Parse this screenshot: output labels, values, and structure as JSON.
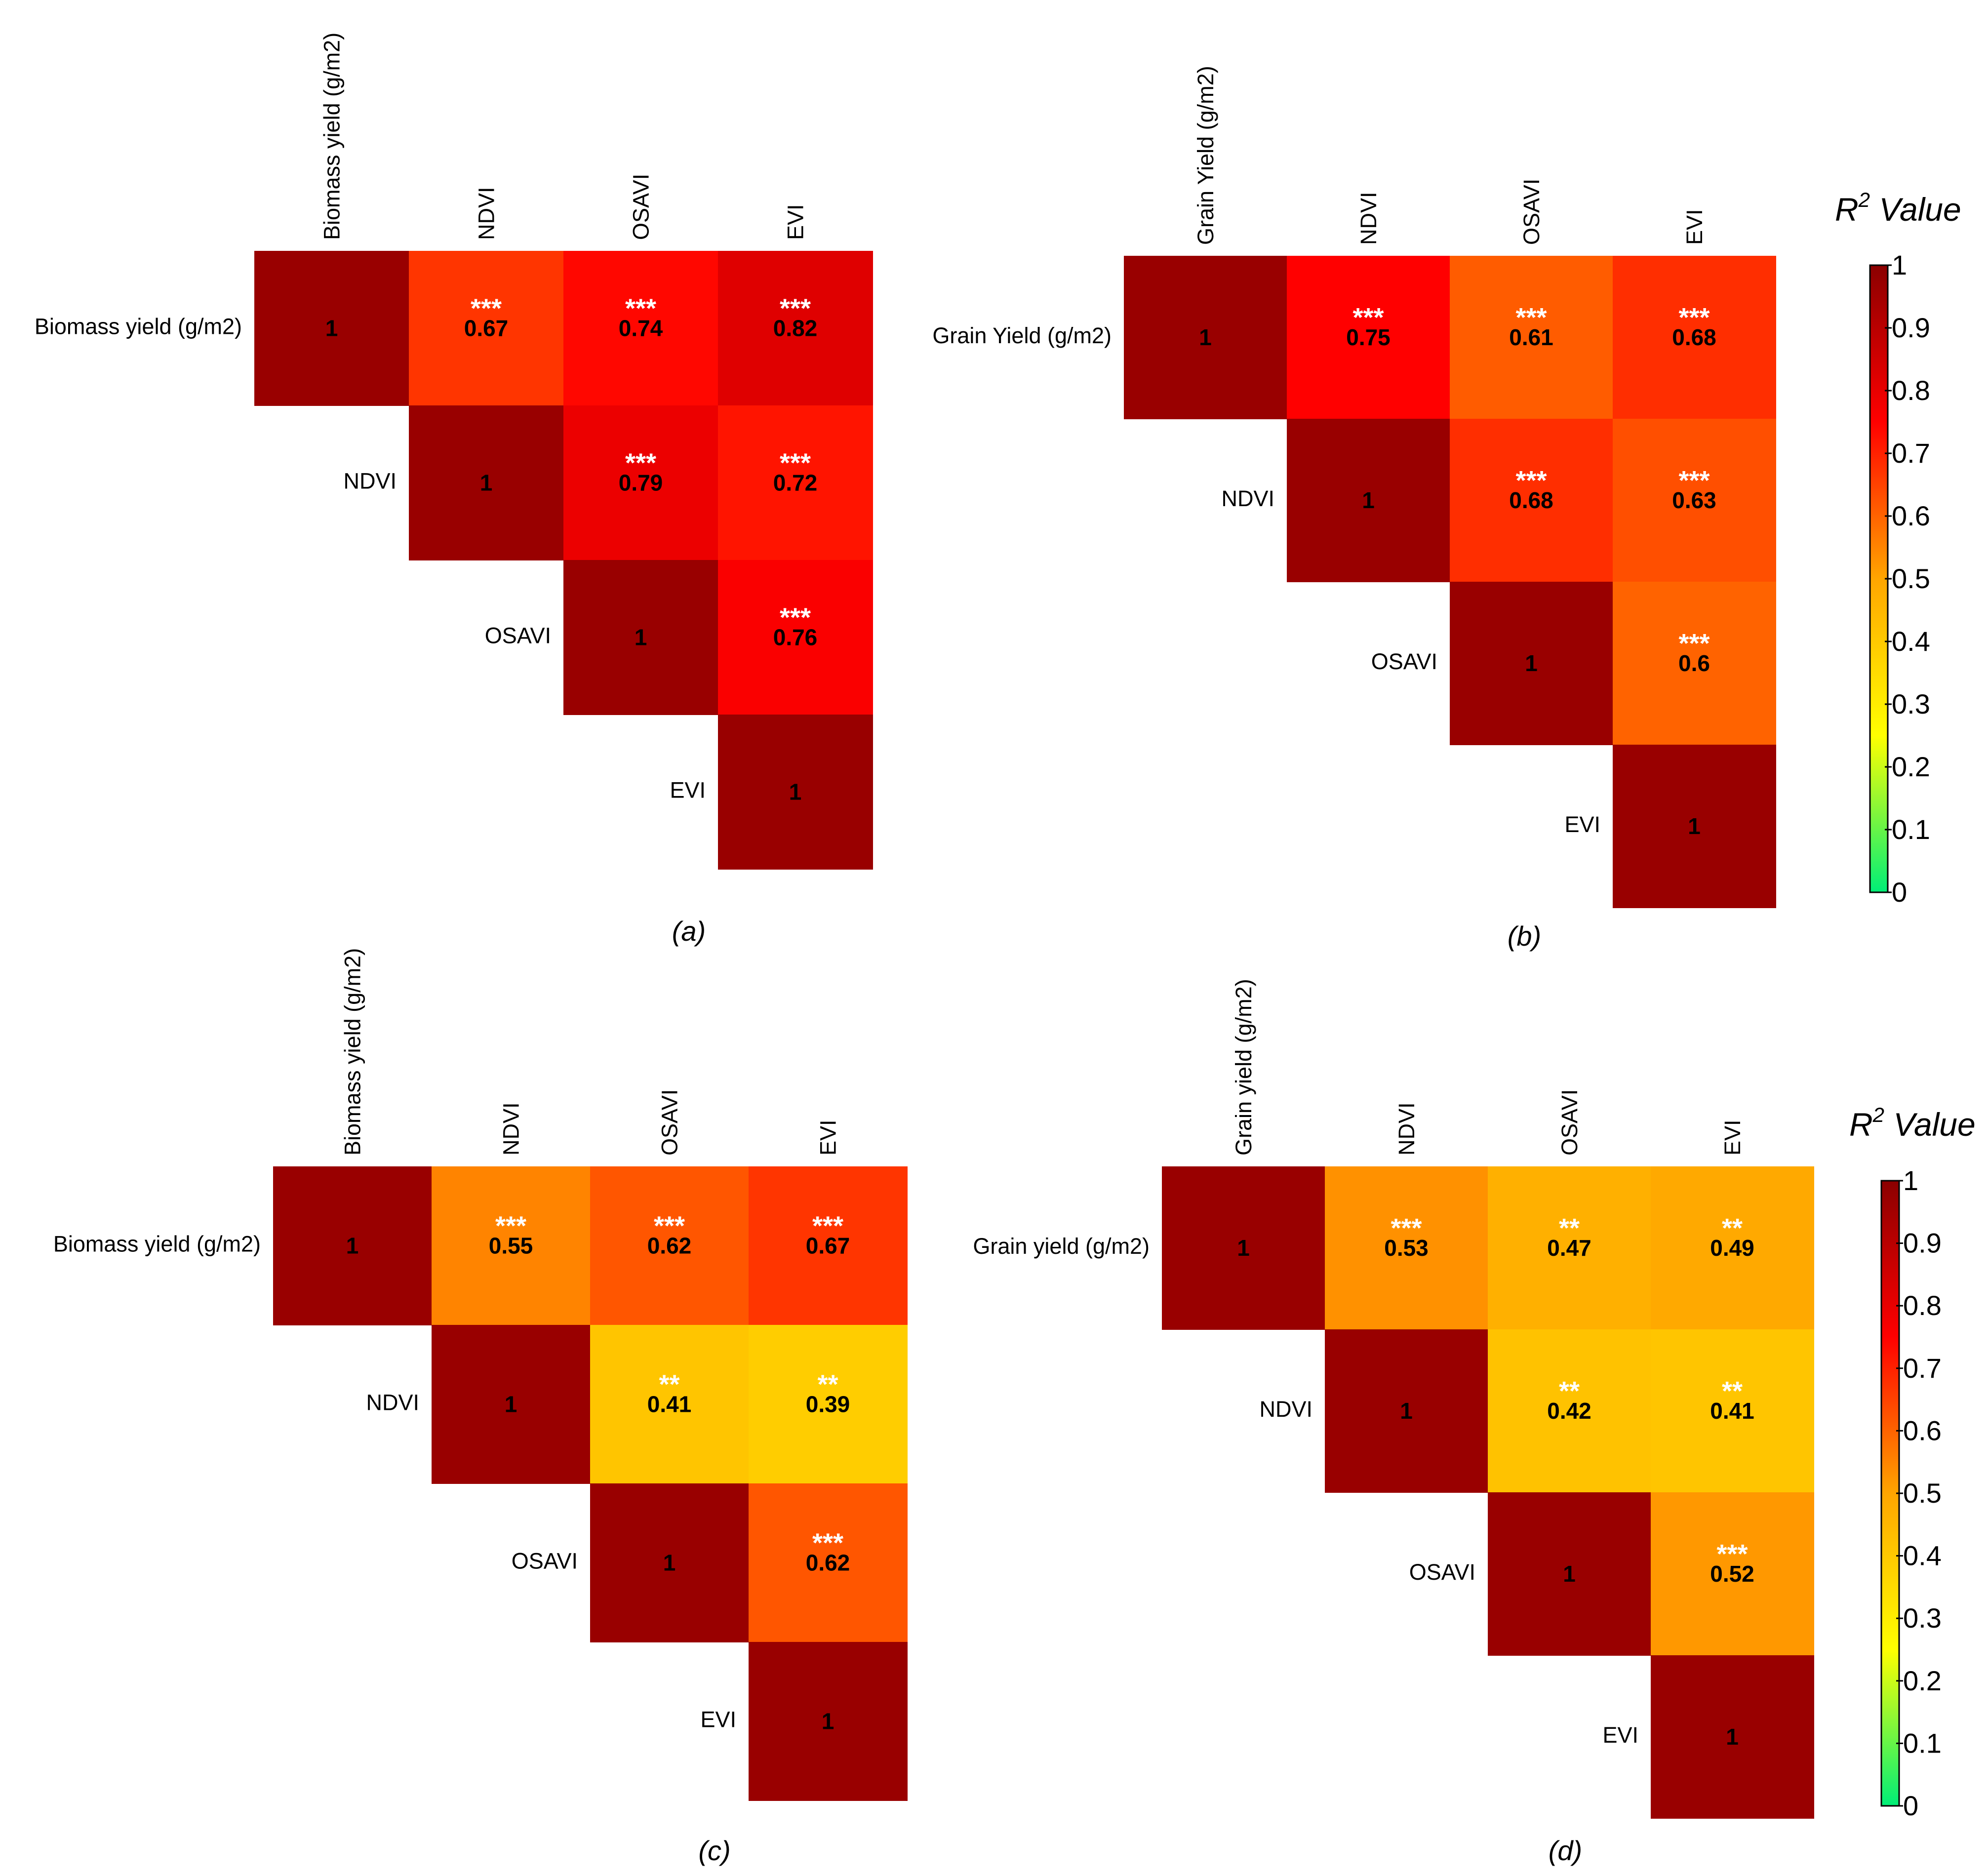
{
  "chart_data": [
    {
      "type": "heatmap",
      "caption": "(a)",
      "variables": [
        "Biomass yield (g/m2)",
        "NDVI",
        "OSAVI",
        "EVI"
      ],
      "cells": [
        {
          "row": 0,
          "col": 0,
          "value": 1,
          "label": "1",
          "stars": ""
        },
        {
          "row": 0,
          "col": 1,
          "value": 0.67,
          "label": "0.67",
          "stars": "***"
        },
        {
          "row": 0,
          "col": 2,
          "value": 0.74,
          "label": "0.74",
          "stars": "***"
        },
        {
          "row": 0,
          "col": 3,
          "value": 0.82,
          "label": "0.82",
          "stars": "***"
        },
        {
          "row": 1,
          "col": 1,
          "value": 1,
          "label": "1",
          "stars": ""
        },
        {
          "row": 1,
          "col": 2,
          "value": 0.79,
          "label": "0.79",
          "stars": "***"
        },
        {
          "row": 1,
          "col": 3,
          "value": 0.72,
          "label": "0.72",
          "stars": "***"
        },
        {
          "row": 2,
          "col": 2,
          "value": 1,
          "label": "1",
          "stars": ""
        },
        {
          "row": 2,
          "col": 3,
          "value": 0.76,
          "label": "0.76",
          "stars": "***"
        },
        {
          "row": 3,
          "col": 3,
          "value": 1,
          "label": "1",
          "stars": ""
        }
      ]
    },
    {
      "type": "heatmap",
      "caption": "(b)",
      "variables": [
        "Grain Yield (g/m2)",
        "NDVI",
        "OSAVI",
        "EVI"
      ],
      "cells": [
        {
          "row": 0,
          "col": 0,
          "value": 1,
          "label": "1",
          "stars": ""
        },
        {
          "row": 0,
          "col": 1,
          "value": 0.75,
          "label": "0.75",
          "stars": "***"
        },
        {
          "row": 0,
          "col": 2,
          "value": 0.61,
          "label": "0.61",
          "stars": "***"
        },
        {
          "row": 0,
          "col": 3,
          "value": 0.68,
          "label": "0.68",
          "stars": "***"
        },
        {
          "row": 1,
          "col": 1,
          "value": 1,
          "label": "1",
          "stars": ""
        },
        {
          "row": 1,
          "col": 2,
          "value": 0.68,
          "label": "0.68",
          "stars": "***"
        },
        {
          "row": 1,
          "col": 3,
          "value": 0.63,
          "label": "0.63",
          "stars": "***"
        },
        {
          "row": 2,
          "col": 2,
          "value": 1,
          "label": "1",
          "stars": ""
        },
        {
          "row": 2,
          "col": 3,
          "value": 0.6,
          "label": "0.6",
          "stars": "***"
        },
        {
          "row": 3,
          "col": 3,
          "value": 1,
          "label": "1",
          "stars": ""
        }
      ]
    },
    {
      "type": "heatmap",
      "caption": "(c)",
      "variables": [
        "Biomass yield (g/m2)",
        "NDVI",
        "OSAVI",
        "EVI"
      ],
      "cells": [
        {
          "row": 0,
          "col": 0,
          "value": 1,
          "label": "1",
          "stars": ""
        },
        {
          "row": 0,
          "col": 1,
          "value": 0.55,
          "label": "0.55",
          "stars": "***"
        },
        {
          "row": 0,
          "col": 2,
          "value": 0.62,
          "label": "0.62",
          "stars": "***"
        },
        {
          "row": 0,
          "col": 3,
          "value": 0.67,
          "label": "0.67",
          "stars": "***"
        },
        {
          "row": 1,
          "col": 1,
          "value": 1,
          "label": "1",
          "stars": ""
        },
        {
          "row": 1,
          "col": 2,
          "value": 0.41,
          "label": "0.41",
          "stars": "**"
        },
        {
          "row": 1,
          "col": 3,
          "value": 0.39,
          "label": "0.39",
          "stars": "**"
        },
        {
          "row": 2,
          "col": 2,
          "value": 1,
          "label": "1",
          "stars": ""
        },
        {
          "row": 2,
          "col": 3,
          "value": 0.62,
          "label": "0.62",
          "stars": "***"
        },
        {
          "row": 3,
          "col": 3,
          "value": 1,
          "label": "1",
          "stars": ""
        }
      ]
    },
    {
      "type": "heatmap",
      "caption": "(d)",
      "variables": [
        "Grain yield (g/m2)",
        "NDVI",
        "OSAVI",
        "EVI"
      ],
      "cells": [
        {
          "row": 0,
          "col": 0,
          "value": 1,
          "label": "1",
          "stars": ""
        },
        {
          "row": 0,
          "col": 1,
          "value": 0.53,
          "label": "0.53",
          "stars": "***"
        },
        {
          "row": 0,
          "col": 2,
          "value": 0.47,
          "label": "0.47",
          "stars": "**"
        },
        {
          "row": 0,
          "col": 3,
          "value": 0.49,
          "label": "0.49",
          "stars": "**"
        },
        {
          "row": 1,
          "col": 1,
          "value": 1,
          "label": "1",
          "stars": ""
        },
        {
          "row": 1,
          "col": 2,
          "value": 0.42,
          "label": "0.42",
          "stars": "**"
        },
        {
          "row": 1,
          "col": 3,
          "value": 0.41,
          "label": "0.41",
          "stars": "**"
        },
        {
          "row": 2,
          "col": 2,
          "value": 1,
          "label": "1",
          "stars": ""
        },
        {
          "row": 2,
          "col": 3,
          "value": 0.52,
          "label": "0.52",
          "stars": "***"
        },
        {
          "row": 3,
          "col": 3,
          "value": 1,
          "label": "1",
          "stars": ""
        }
      ]
    }
  ],
  "colorbars": [
    {
      "title": "R",
      "superscript": "2",
      "title_suffix": " Value",
      "range": [
        0,
        1
      ],
      "ticks": [
        "0",
        "0.1",
        "0.2",
        "0.3",
        "0.4",
        "0.5",
        "0.6",
        "0.7",
        "0.8",
        "0.9",
        "1"
      ],
      "colors": [
        "#00ee77",
        "#ffff00",
        "#ffa500",
        "#ff0000",
        "#8b0000"
      ]
    },
    {
      "title": "R",
      "superscript": "2",
      "title_suffix": " Value",
      "range": [
        0,
        1
      ],
      "ticks": [
        "0",
        "0.1",
        "0.2",
        "0.3",
        "0.4",
        "0.5",
        "0.6",
        "0.7",
        "0.8",
        "0.9",
        "1"
      ],
      "colors": [
        "#00ee77",
        "#ffff00",
        "#ffa500",
        "#ff0000",
        "#8b0000"
      ]
    }
  ]
}
